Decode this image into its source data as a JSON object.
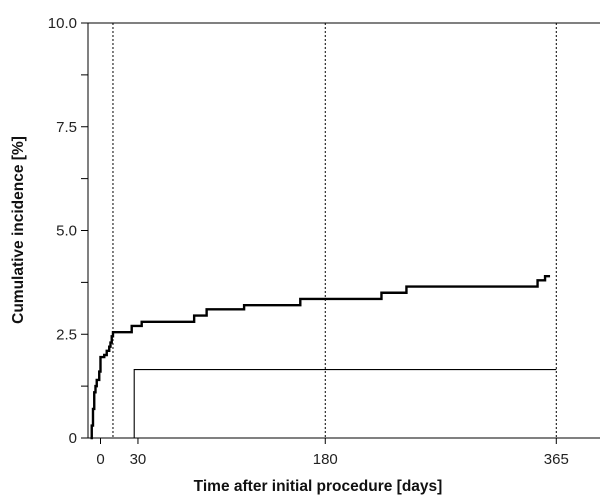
{
  "chart_data": {
    "type": "line",
    "title": "",
    "xlabel": "Time after initial procedure [days]",
    "ylabel": "Cumulative incidence [%]",
    "xlim": [
      -10,
      400
    ],
    "ylim": [
      0,
      10
    ],
    "x_ticks": [
      {
        "value": 0,
        "label": "0"
      },
      {
        "value": 30,
        "label": "30"
      },
      {
        "value": 180,
        "label": "180"
      },
      {
        "value": 365,
        "label": "365"
      }
    ],
    "y_ticks": [
      {
        "value": 0,
        "label": "0"
      },
      {
        "value": 2.5,
        "label": "2.5"
      },
      {
        "value": 5,
        "label": "5.0"
      },
      {
        "value": 7.5,
        "label": "7.5"
      },
      {
        "value": 10,
        "label": "10.0"
      }
    ],
    "y_minor_ticks": [
      1.25,
      3.75,
      6.25,
      8.75
    ],
    "reference_lines_x": [
      10,
      180,
      365
    ],
    "grid": false,
    "series": [
      {
        "style": "step-thick",
        "color": "#000000",
        "points": [
          [
            -8,
            0
          ],
          [
            -7,
            0.3
          ],
          [
            -6,
            0.7
          ],
          [
            -5,
            1.1
          ],
          [
            -4,
            1.25
          ],
          [
            -3,
            1.4
          ],
          [
            -1,
            1.6
          ],
          [
            0,
            1.95
          ],
          [
            3,
            2.0
          ],
          [
            5,
            2.1
          ],
          [
            7,
            2.2
          ],
          [
            8,
            2.3
          ],
          [
            9,
            2.45
          ],
          [
            10,
            2.55
          ],
          [
            25,
            2.7
          ],
          [
            33,
            2.8
          ],
          [
            75,
            2.95
          ],
          [
            85,
            3.1
          ],
          [
            115,
            3.2
          ],
          [
            160,
            3.35
          ],
          [
            225,
            3.5
          ],
          [
            245,
            3.65
          ],
          [
            350,
            3.8
          ],
          [
            356,
            3.9
          ],
          [
            360,
            3.9
          ]
        ]
      },
      {
        "style": "step-thin",
        "color": "#000000",
        "points": [
          [
            27,
            0
          ],
          [
            27,
            1.65
          ],
          [
            365,
            1.65
          ]
        ]
      }
    ]
  }
}
